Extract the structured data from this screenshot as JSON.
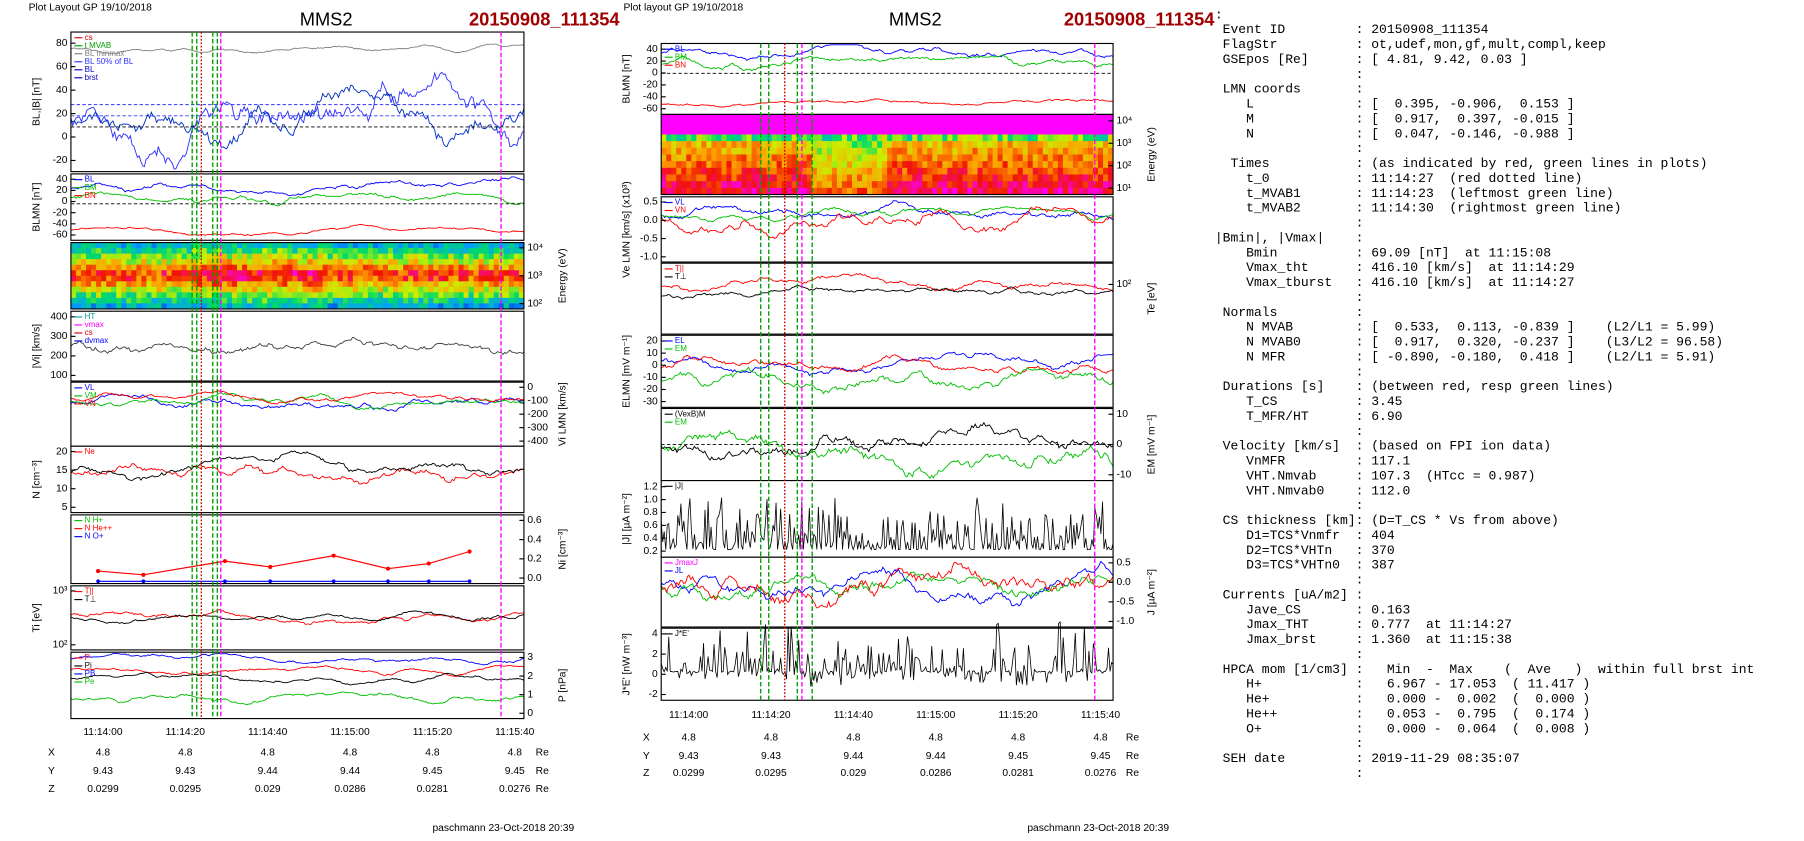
{
  "left": {
    "header": "Plot Layout GP 19/10/2018",
    "spacecraft": "MMS2",
    "event": "20150908_111354",
    "panels": [
      {
        "label": "BL,|B| [nT]",
        "ticks": [
          "80",
          "60",
          "40",
          "20",
          "0",
          "-20"
        ],
        "legend": [
          {
            "text": "cs",
            "color": "#d00000"
          },
          {
            "text": "t MVAB",
            "color": "#00a000"
          },
          {
            "text": "BL minmax",
            "color": "#808080"
          },
          {
            "text": "BL 50% of BL",
            "color": "#3030ff"
          },
          {
            "text": "BL",
            "color": "#0000c0"
          },
          {
            "text": "brst",
            "color": "#0000c0"
          }
        ]
      },
      {
        "label": "BLMN [nT]",
        "ticks": [
          "40",
          "20",
          "0",
          "-20",
          "-40",
          "-60"
        ],
        "legend": [
          {
            "text": "BL",
            "color": "#0000ff"
          },
          {
            "text": "BM",
            "color": "#00c000"
          },
          {
            "text": "BN",
            "color": "#ff0000"
          }
        ]
      },
      {
        "label": "Energy (eV)",
        "side": "right",
        "ticks": [
          "10⁴",
          "10³",
          "10²"
        ],
        "legend": []
      },
      {
        "label": "|Vi| [km/s]",
        "ticks": [
          "400",
          "300",
          "200",
          "100"
        ],
        "legend": [
          {
            "text": "HT",
            "color": "#00a0a0"
          },
          {
            "text": "vmax",
            "color": "#ff00ff"
          },
          {
            "text": "cs",
            "color": "#d00000"
          },
          {
            "text": "dvmax",
            "color": "#0000ff"
          }
        ]
      },
      {
        "label": "Vi LMN [km/s]",
        "side": "right",
        "ticks": [
          "0",
          "-100",
          "-200",
          "-300",
          "-400"
        ],
        "legend": [
          {
            "text": "VL",
            "color": "#0000ff"
          },
          {
            "text": "VM",
            "color": "#00c000"
          },
          {
            "text": "VN",
            "color": "#ff0000"
          }
        ]
      },
      {
        "label": "N [cm⁻³]",
        "ticks": [
          "20",
          "15",
          "10",
          "5"
        ],
        "legend": [
          {
            "text": "Ne",
            "color": "#ff0000"
          }
        ]
      },
      {
        "label": "Ni [cm⁻³]",
        "side": "right",
        "ticks": [
          "0.6",
          "0.4",
          "0.2",
          "0.0"
        ],
        "legend": [
          {
            "text": "N H+",
            "color": "#00c000"
          },
          {
            "text": "N He++",
            "color": "#ff0000"
          },
          {
            "text": "N O+",
            "color": "#0000ff"
          }
        ]
      },
      {
        "label": "Ti [eV]",
        "ticks": [
          "10³",
          "10²"
        ],
        "legend": [
          {
            "text": "T||",
            "color": "#ff0000"
          },
          {
            "text": "T⊥",
            "color": "#000000"
          }
        ]
      },
      {
        "label": "P [nPa]",
        "side": "right",
        "ticks": [
          "3",
          "2",
          "1",
          "0"
        ],
        "legend": [
          {
            "text": "P",
            "color": "#ff0000"
          },
          {
            "text": "Pi",
            "color": "#000000"
          },
          {
            "text": "PB",
            "color": "#0000ff"
          },
          {
            "text": "Pe",
            "color": "#00c000"
          }
        ]
      }
    ],
    "xticks": [
      "11:14:00",
      "11:14:20",
      "11:14:40",
      "11:15:00",
      "11:15:20",
      "11:15:40"
    ],
    "positions": [
      {
        "label": "X",
        "values": [
          4.8,
          4.8,
          4.8,
          4.8,
          4.8,
          4.8
        ],
        "unit": "Re"
      },
      {
        "label": "Y",
        "values": [
          9.43,
          9.43,
          9.44,
          9.44,
          9.45,
          9.45
        ],
        "unit": "Re"
      },
      {
        "label": "Z",
        "values": [
          0.0299,
          0.0295,
          0.029,
          0.0286,
          0.0281,
          0.0276
        ],
        "unit": "Re"
      }
    ],
    "footer": "paschmann 23-Oct-2018 20:39"
  },
  "middle": {
    "header": "Plot layout GP 19/10/2018",
    "spacecraft": "MMS2",
    "event": "20150908_111354",
    "panels": [
      {
        "label": "BLMN [nT]",
        "ticks": [
          "40",
          "20",
          "0",
          "-20",
          "-40",
          "-60"
        ],
        "legend": [
          {
            "text": "BL",
            "color": "#0000ff"
          },
          {
            "text": "BM",
            "color": "#00c000"
          },
          {
            "text": "BN",
            "color": "#ff0000"
          }
        ]
      },
      {
        "label": "Energy (eV)",
        "side": "right",
        "ticks": [
          "10⁴",
          "10³",
          "10²",
          "10¹"
        ],
        "legend": []
      },
      {
        "label": "Ve LMN [km/s] (x10³)",
        "ticks": [
          "0.5",
          "0.0",
          "-0.5",
          "-1.0"
        ],
        "legend": [
          {
            "text": "VL",
            "color": "#0000ff"
          },
          {
            "text": "VN",
            "color": "#ff0000"
          }
        ]
      },
      {
        "label": "Te [eV]",
        "side": "right",
        "ticks": [
          "10²"
        ],
        "legend": [
          {
            "text": "T||",
            "color": "#ff0000"
          },
          {
            "text": "T⊥",
            "color": "#000000"
          }
        ]
      },
      {
        "label": "ELMN [mV m⁻¹]",
        "ticks": [
          "20",
          "10",
          "0",
          "-10",
          "-20",
          "-30"
        ],
        "legend": [
          {
            "text": "EL",
            "color": "#0000ff"
          },
          {
            "text": "EM",
            "color": "#00c000"
          }
        ]
      },
      {
        "label": "EM [mV m⁻¹]",
        "side": "right",
        "ticks": [
          "10",
          "0",
          "-10"
        ],
        "legend": [
          {
            "text": "(VexB)M",
            "color": "#000000"
          },
          {
            "text": "EM",
            "color": "#00c000"
          }
        ]
      },
      {
        "label": "|J| [µA m⁻²]",
        "ticks": [
          "1.2",
          "1.0",
          "0.8",
          "0.6",
          "0.4",
          "0.2"
        ],
        "legend": [
          {
            "text": "|J|",
            "color": "#000000"
          }
        ]
      },
      {
        "label": "J [µA m⁻²]",
        "side": "right",
        "ticks": [
          "0.5",
          "0.0",
          "-0.5",
          "-1.0"
        ],
        "legend": [
          {
            "text": "JmaxJ",
            "color": "#ff00ff"
          },
          {
            "text": "JL",
            "color": "#0000ff"
          }
        ]
      },
      {
        "label": "J*E' [nW m⁻³]",
        "ticks": [
          "4",
          "2",
          "0",
          "-2"
        ],
        "legend": [
          {
            "text": "J*E'",
            "color": "#000000"
          }
        ]
      }
    ],
    "xticks": [
      "11:14:00",
      "11:14:20",
      "11:14:40",
      "11:15:00",
      "11:15:20",
      "11:15:40"
    ],
    "positions": [
      {
        "label": "X",
        "values": [
          4.8,
          4.8,
          4.8,
          4.8,
          4.8,
          4.8
        ],
        "unit": "Re"
      },
      {
        "label": "Y",
        "values": [
          9.43,
          9.43,
          9.44,
          9.44,
          9.45,
          9.45
        ],
        "unit": "Re"
      },
      {
        "label": "Z",
        "values": [
          0.0299,
          0.0295,
          0.029,
          0.0286,
          0.0281,
          0.0276
        ],
        "unit": "Re"
      }
    ],
    "footer": "paschmann 23-Oct-2018 20:39"
  },
  "summary": [
    {
      "k": ":"
    },
    {
      "k": " Event ID",
      "v": ": 20150908_111354"
    },
    {
      "k": " FlagStr",
      "v": ": ot,udef,mon,gf,mult,compl,keep"
    },
    {
      "k": " GSEpos [Re]",
      "v": ": [ 4.81, 9.42, 0.03 ]"
    },
    {
      "v": ":"
    },
    {
      "k": " LMN coords",
      "v": ":"
    },
    {
      "k": "    L",
      "v": ": [  0.395, -0.906,  0.153 ]"
    },
    {
      "k": "    M",
      "v": ": [  0.917,  0.397, -0.015 ]"
    },
    {
      "k": "    N",
      "v": ": [  0.047, -0.146, -0.988 ]"
    },
    {
      "v": ":"
    },
    {
      "k": "  Times",
      "v": ": (as indicated by red, green lines in plots)"
    },
    {
      "k": "    t_0",
      "v": ": 11:14:27  (red dotted line)"
    },
    {
      "k": "    t_MVAB1",
      "v": ": 11:14:23  (leftmost green line)"
    },
    {
      "k": "    t_MVAB2",
      "v": ": 11:14:30  (rightmost green line)"
    },
    {
      "v": ":"
    },
    {
      "k": "|Bmin|, |Vmax|",
      "v": ":"
    },
    {
      "k": "    Bmin",
      "v": ": 69.09 [nT]  at 11:15:08"
    },
    {
      "k": "    Vmax_tht",
      "v": ": 416.10 [km/s]  at 11:14:29"
    },
    {
      "k": "    Vmax_tburst",
      "v": ": 416.10 [km/s]  at 11:14:27"
    },
    {
      "v": ":"
    },
    {
      "k": " Normals",
      "v": ":"
    },
    {
      "k": "    N MVAB",
      "v": ": [  0.533,  0.113, -0.839 ]    (L2/L1 = 5.99)"
    },
    {
      "k": "    N MVAB0",
      "v": ": [  0.917,  0.320, -0.237 ]    (L3/L2 = 96.58)"
    },
    {
      "k": "    N MFR",
      "v": ": [ -0.890, -0.180,  0.418 ]    (L2/L1 = 5.91)"
    },
    {
      "v": ":"
    },
    {
      "k": " Durations [s]",
      "v": ": (between red, resp green lines)"
    },
    {
      "k": "    T_CS",
      "v": ": 3.45"
    },
    {
      "k": "    T_MFR/HT",
      "v": ": 6.90"
    },
    {
      "v": ":"
    },
    {
      "k": " Velocity [km/s]",
      "v": ": (based on FPI ion data)"
    },
    {
      "k": "    VnMFR",
      "v": ": 117.1"
    },
    {
      "k": "    VHT.Nmvab",
      "v": ": 107.3  (HTcc = 0.987)"
    },
    {
      "k": "    VHT.Nmvab0",
      "v": ": 112.0"
    },
    {
      "v": ":"
    },
    {
      "k": " CS thickness [km]",
      "v": ": (D=T_CS * Vs from above)"
    },
    {
      "k": "    D1=TCS*Vnmfr",
      "v": ": 404"
    },
    {
      "k": "    D2=TCS*VHTn",
      "v": ": 370"
    },
    {
      "k": "    D3=TCS*VHTn0",
      "v": ": 387"
    },
    {
      "v": ":"
    },
    {
      "k": " Currents [uA/m2]",
      "v": ":"
    },
    {
      "k": "    Jave_CS",
      "v": ": 0.163"
    },
    {
      "k": "    Jmax_THT",
      "v": ": 0.777  at 11:14:27"
    },
    {
      "k": "    Jmax_brst",
      "v": ": 1.360  at 11:15:38"
    },
    {
      "v": ":"
    },
    {
      "k": " HPCA mom [1/cm3]",
      "v": ":   Min  -  Max    (  Ave   )  within full brst int"
    },
    {
      "k": "    H+",
      "v": ":   6.967 - 17.053  ( 11.417 )"
    },
    {
      "k": "    He+",
      "v": ":   0.000 -  0.002  (  0.000 )"
    },
    {
      "k": "    He++",
      "v": ":   0.053 -  0.795  (  0.174 )"
    },
    {
      "k": "    O+",
      "v": ":   0.000 -  0.064  (  0.008 )"
    },
    {
      "v": ":"
    },
    {
      "k": " SEH date",
      "v": ": 2019-11-29 08:35:07"
    },
    {
      "v": ":"
    }
  ]
}
